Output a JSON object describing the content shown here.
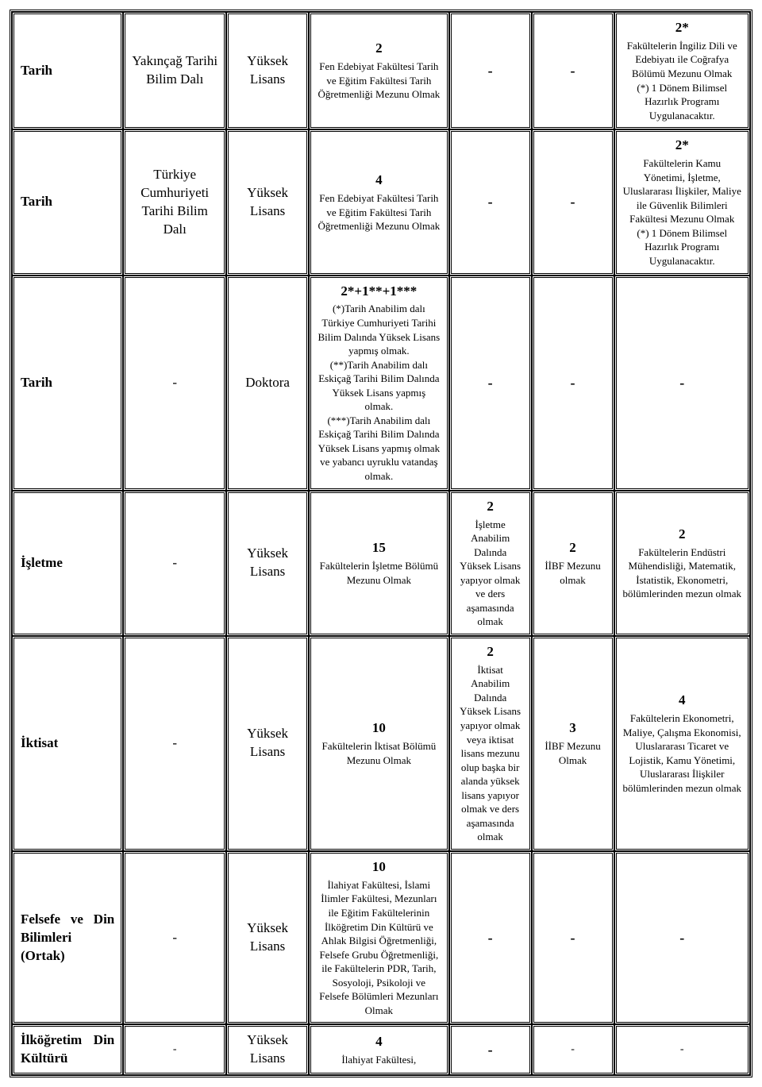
{
  "table": {
    "rows": [
      {
        "c1": "Tarih",
        "c2": "Yakınçağ Tarihi Bilim Dalı",
        "c3": "Yüksek Lisans",
        "c4_quota": "2",
        "c4_desc": "Fen Edebiyat Fakültesi Tarih ve Eğitim Fakültesi Tarih Öğretmenliği Mezunu Olmak",
        "c5_quota": "",
        "c5_desc": "",
        "c5_dash": "-",
        "c6_quota": "",
        "c6_desc": "",
        "c6_dash": "-",
        "c7_quota": "2*",
        "c7_desc": "Fakültelerin İngiliz Dili ve Edebiyatı ile Coğrafya Bölümü Mezunu Olmak\n(*) 1 Dönem Bilimsel Hazırlık Programı Uygulanacaktır."
      },
      {
        "c1": "Tarih",
        "c2": "Türkiye Cumhuriyeti Tarihi Bilim Dalı",
        "c3": "Yüksek Lisans",
        "c4_quota": "4",
        "c4_desc": "Fen Edebiyat Fakültesi Tarih ve Eğitim Fakültesi Tarih Öğretmenliği Mezunu Olmak",
        "c5_quota": "",
        "c5_desc": "",
        "c5_dash": "-",
        "c6_quota": "",
        "c6_desc": "",
        "c6_dash": "-",
        "c7_quota": "2*",
        "c7_desc": "Fakültelerin Kamu Yönetimi, İşletme, Uluslararası İlişkiler, Maliye ile Güvenlik Bilimleri Fakültesi Mezunu Olmak\n(*) 1 Dönem Bilimsel Hazırlık Programı Uygulanacaktır."
      },
      {
        "c1": "Tarih",
        "c2": "-",
        "c3": "Doktora",
        "c4_quota": "2*+1**+1***",
        "c4_desc": "(*)Tarih Anabilim dalı Türkiye Cumhuriyeti Tarihi Bilim Dalında Yüksek Lisans yapmış olmak.\n(**)Tarih Anabilim dalı Eskiçağ Tarihi Bilim Dalında Yüksek Lisans yapmış olmak.\n(***)Tarih Anabilim dalı Eskiçağ Tarihi Bilim Dalında Yüksek Lisans yapmış olmak ve yabancı uyruklu vatandaş olmak.",
        "c5_quota": "",
        "c5_desc": "",
        "c5_dash": "-",
        "c6_quota": "",
        "c6_desc": "",
        "c6_dash": "-",
        "c7_quota": "",
        "c7_desc": "",
        "c7_dash": "-"
      },
      {
        "c1": "İşletme",
        "c2": "-",
        "c3": "Yüksek Lisans",
        "c4_quota": "15",
        "c4_desc": "Fakültelerin İşletme Bölümü Mezunu Olmak",
        "c5_quota": "2",
        "c5_desc": "İşletme Anabilim Dalında Yüksek Lisans yapıyor olmak ve ders aşamasında olmak",
        "c6_quota": "2",
        "c6_desc": "İİBF Mezunu olmak",
        "c7_quota": "2",
        "c7_desc": "Fakültelerin Endüstri Mühendisliği, Matematik, İstatistik, Ekonometri, bölümlerinden mezun olmak"
      },
      {
        "c1": "İktisat",
        "c2": "-",
        "c3": "Yüksek Lisans",
        "c4_quota": "10",
        "c4_desc": "Fakültelerin İktisat Bölümü Mezunu Olmak",
        "c5_quota": "2",
        "c5_desc": "İktisat Anabilim Dalında Yüksek Lisans yapıyor olmak veya iktisat lisans mezunu olup başka bir alanda yüksek lisans yapıyor olmak ve ders aşamasında olmak",
        "c6_quota": "3",
        "c6_desc": "İİBF Mezunu Olmak",
        "c7_quota": "4",
        "c7_desc": "Fakültelerin Ekonometri, Maliye, Çalışma Ekonomisi, Uluslararası Ticaret ve Lojistik, Kamu Yönetimi, Uluslararası İlişkiler bölümlerinden mezun olmak"
      },
      {
        "c1": "Felsefe ve Din Bilimleri (Ortak)",
        "c1_justify": true,
        "c2": "-",
        "c3": "Yüksek Lisans",
        "c4_quota": "10",
        "c4_desc": "İlahiyat Fakültesi, İslami İlimler Fakültesi, Mezunları ile Eğitim Fakültelerinin İlköğretim Din Kültürü ve Ahlak Bilgisi Öğretmenliği, Felsefe Grubu Öğretmenliği, ile Fakültelerin PDR, Tarih, Sosyoloji, Psikoloji ve Felsefe Bölümleri Mezunları Olmak",
        "c5_quota": "",
        "c5_desc": "",
        "c5_dash": "-",
        "c6_quota": "",
        "c6_desc": "",
        "c6_dash": "-",
        "c7_quota": "",
        "c7_desc": "",
        "c7_dash": "-"
      },
      {
        "c1": "İlköğretim Din Kültürü",
        "c1_justify": true,
        "c2": "-",
        "c2_small": true,
        "c3": "Yüksek Lisans",
        "c4_quota": "4",
        "c4_desc": "İlahiyat Fakültesi,",
        "c5_quota": "",
        "c5_desc": "",
        "c5_dash": "-",
        "c6_quota": "",
        "c6_desc": "",
        "c6_dash": "-",
        "c6_small": true,
        "c7_quota": "",
        "c7_desc": "",
        "c7_dash": "-",
        "c7_small": true
      }
    ]
  }
}
